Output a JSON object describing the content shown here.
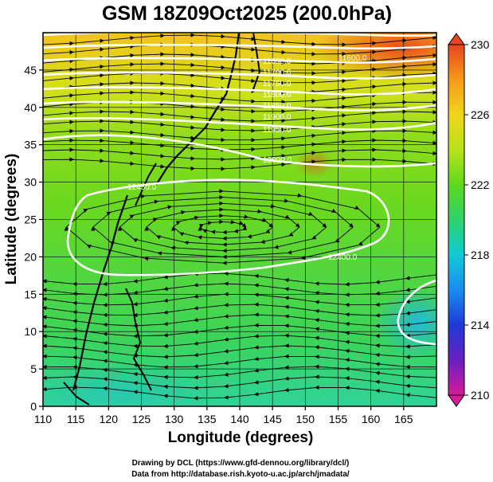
{
  "title": "GSM 18Z09Oct2025 (200.0hPa)",
  "x_axis": {
    "label": "Longitude (degrees)",
    "min": 110,
    "max": 170,
    "ticks": [
      "110",
      "115",
      "120",
      "125",
      "130",
      "135",
      "140",
      "145",
      "150",
      "155",
      "160",
      "165"
    ]
  },
  "y_axis": {
    "label": "Latitude  (degrees)",
    "min": 0,
    "max": 50,
    "ticks": [
      "0",
      "5",
      "10",
      "15",
      "20",
      "25",
      "30",
      "35",
      "40",
      "45"
    ]
  },
  "colorbar": {
    "min": 210,
    "max": 230,
    "ticks": [
      "210",
      "214",
      "218",
      "222",
      "226",
      "230"
    ],
    "colors": [
      "#d81b9a",
      "#6a1fc2",
      "#1e3ad6",
      "#1a8cf0",
      "#12c9d6",
      "#2ed36a",
      "#5fd81e",
      "#b8e21a",
      "#f1d51c",
      "#f59a1a",
      "#e8451c"
    ]
  },
  "contour_labels": [
    "11600.0",
    "11650.0",
    "11700.0",
    "11750.0",
    "11800.0",
    "11850.0",
    "11900.0",
    "11950.0",
    "12000.0",
    "12300.0",
    "12350.0",
    "12400.0",
    "12450.0"
  ],
  "credits": {
    "line1": "Drawing by DCL (https://www.gfd-dennou.org/library/dcl/)",
    "line2": "Data from http://database.rish.kyoto-u.ac.jp/arch/jmadata/"
  }
}
